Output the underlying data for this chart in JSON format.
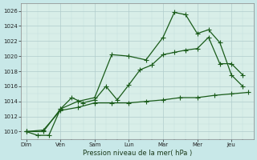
{
  "background_color": "#c8e8e8",
  "plot_bg_color": "#d8eee8",
  "grid_color": "#b0cccc",
  "grid_minor_color": "#c4dede",
  "line_color": "#1a5c1a",
  "ylim": [
    1009,
    1027
  ],
  "xlabel": "Pression niveau de la mer( hPa )",
  "days": [
    "Dim",
    "Ven",
    "Sam",
    "Lun",
    "Mar",
    "Mer",
    "Jeu"
  ],
  "day_x": [
    0,
    1,
    2,
    3,
    4,
    5,
    6
  ],
  "series1_x": [
    0,
    0.33,
    0.66,
    1.0,
    1.33,
    1.66,
    2.0,
    2.33,
    2.66,
    3.0,
    3.33,
    3.66,
    4.0,
    4.33,
    4.66,
    5.0,
    5.33,
    5.66,
    6.0,
    6.33
  ],
  "series1_y": [
    1010.0,
    1009.5,
    1009.5,
    1013.0,
    1014.5,
    1013.8,
    1014.2,
    1016.0,
    1014.2,
    1016.2,
    1018.2,
    1018.8,
    1020.2,
    1020.5,
    1020.8,
    1021.0,
    1022.5,
    1019.0,
    1019.0,
    1017.5
  ],
  "series2_x": [
    0,
    0.5,
    1.0,
    1.5,
    2.0,
    2.5,
    3.0,
    3.5,
    4.0,
    4.33,
    4.66,
    5.0,
    5.33,
    5.66,
    6.0,
    6.33
  ],
  "series2_y": [
    1010.0,
    1010.0,
    1013.0,
    1014.0,
    1014.5,
    1020.2,
    1020.0,
    1019.5,
    1022.5,
    1025.8,
    1025.5,
    1023.0,
    1023.5,
    1021.8,
    1017.5,
    1016.0
  ],
  "series3_x": [
    0,
    0.5,
    1.0,
    1.5,
    2.0,
    2.5,
    3.0,
    3.5,
    4.0,
    4.5,
    5.0,
    5.5,
    6.0,
    6.5
  ],
  "series3_y": [
    1010.0,
    1010.2,
    1012.8,
    1013.2,
    1013.8,
    1013.8,
    1013.8,
    1014.0,
    1014.2,
    1014.5,
    1014.5,
    1014.8,
    1015.0,
    1015.2
  ]
}
